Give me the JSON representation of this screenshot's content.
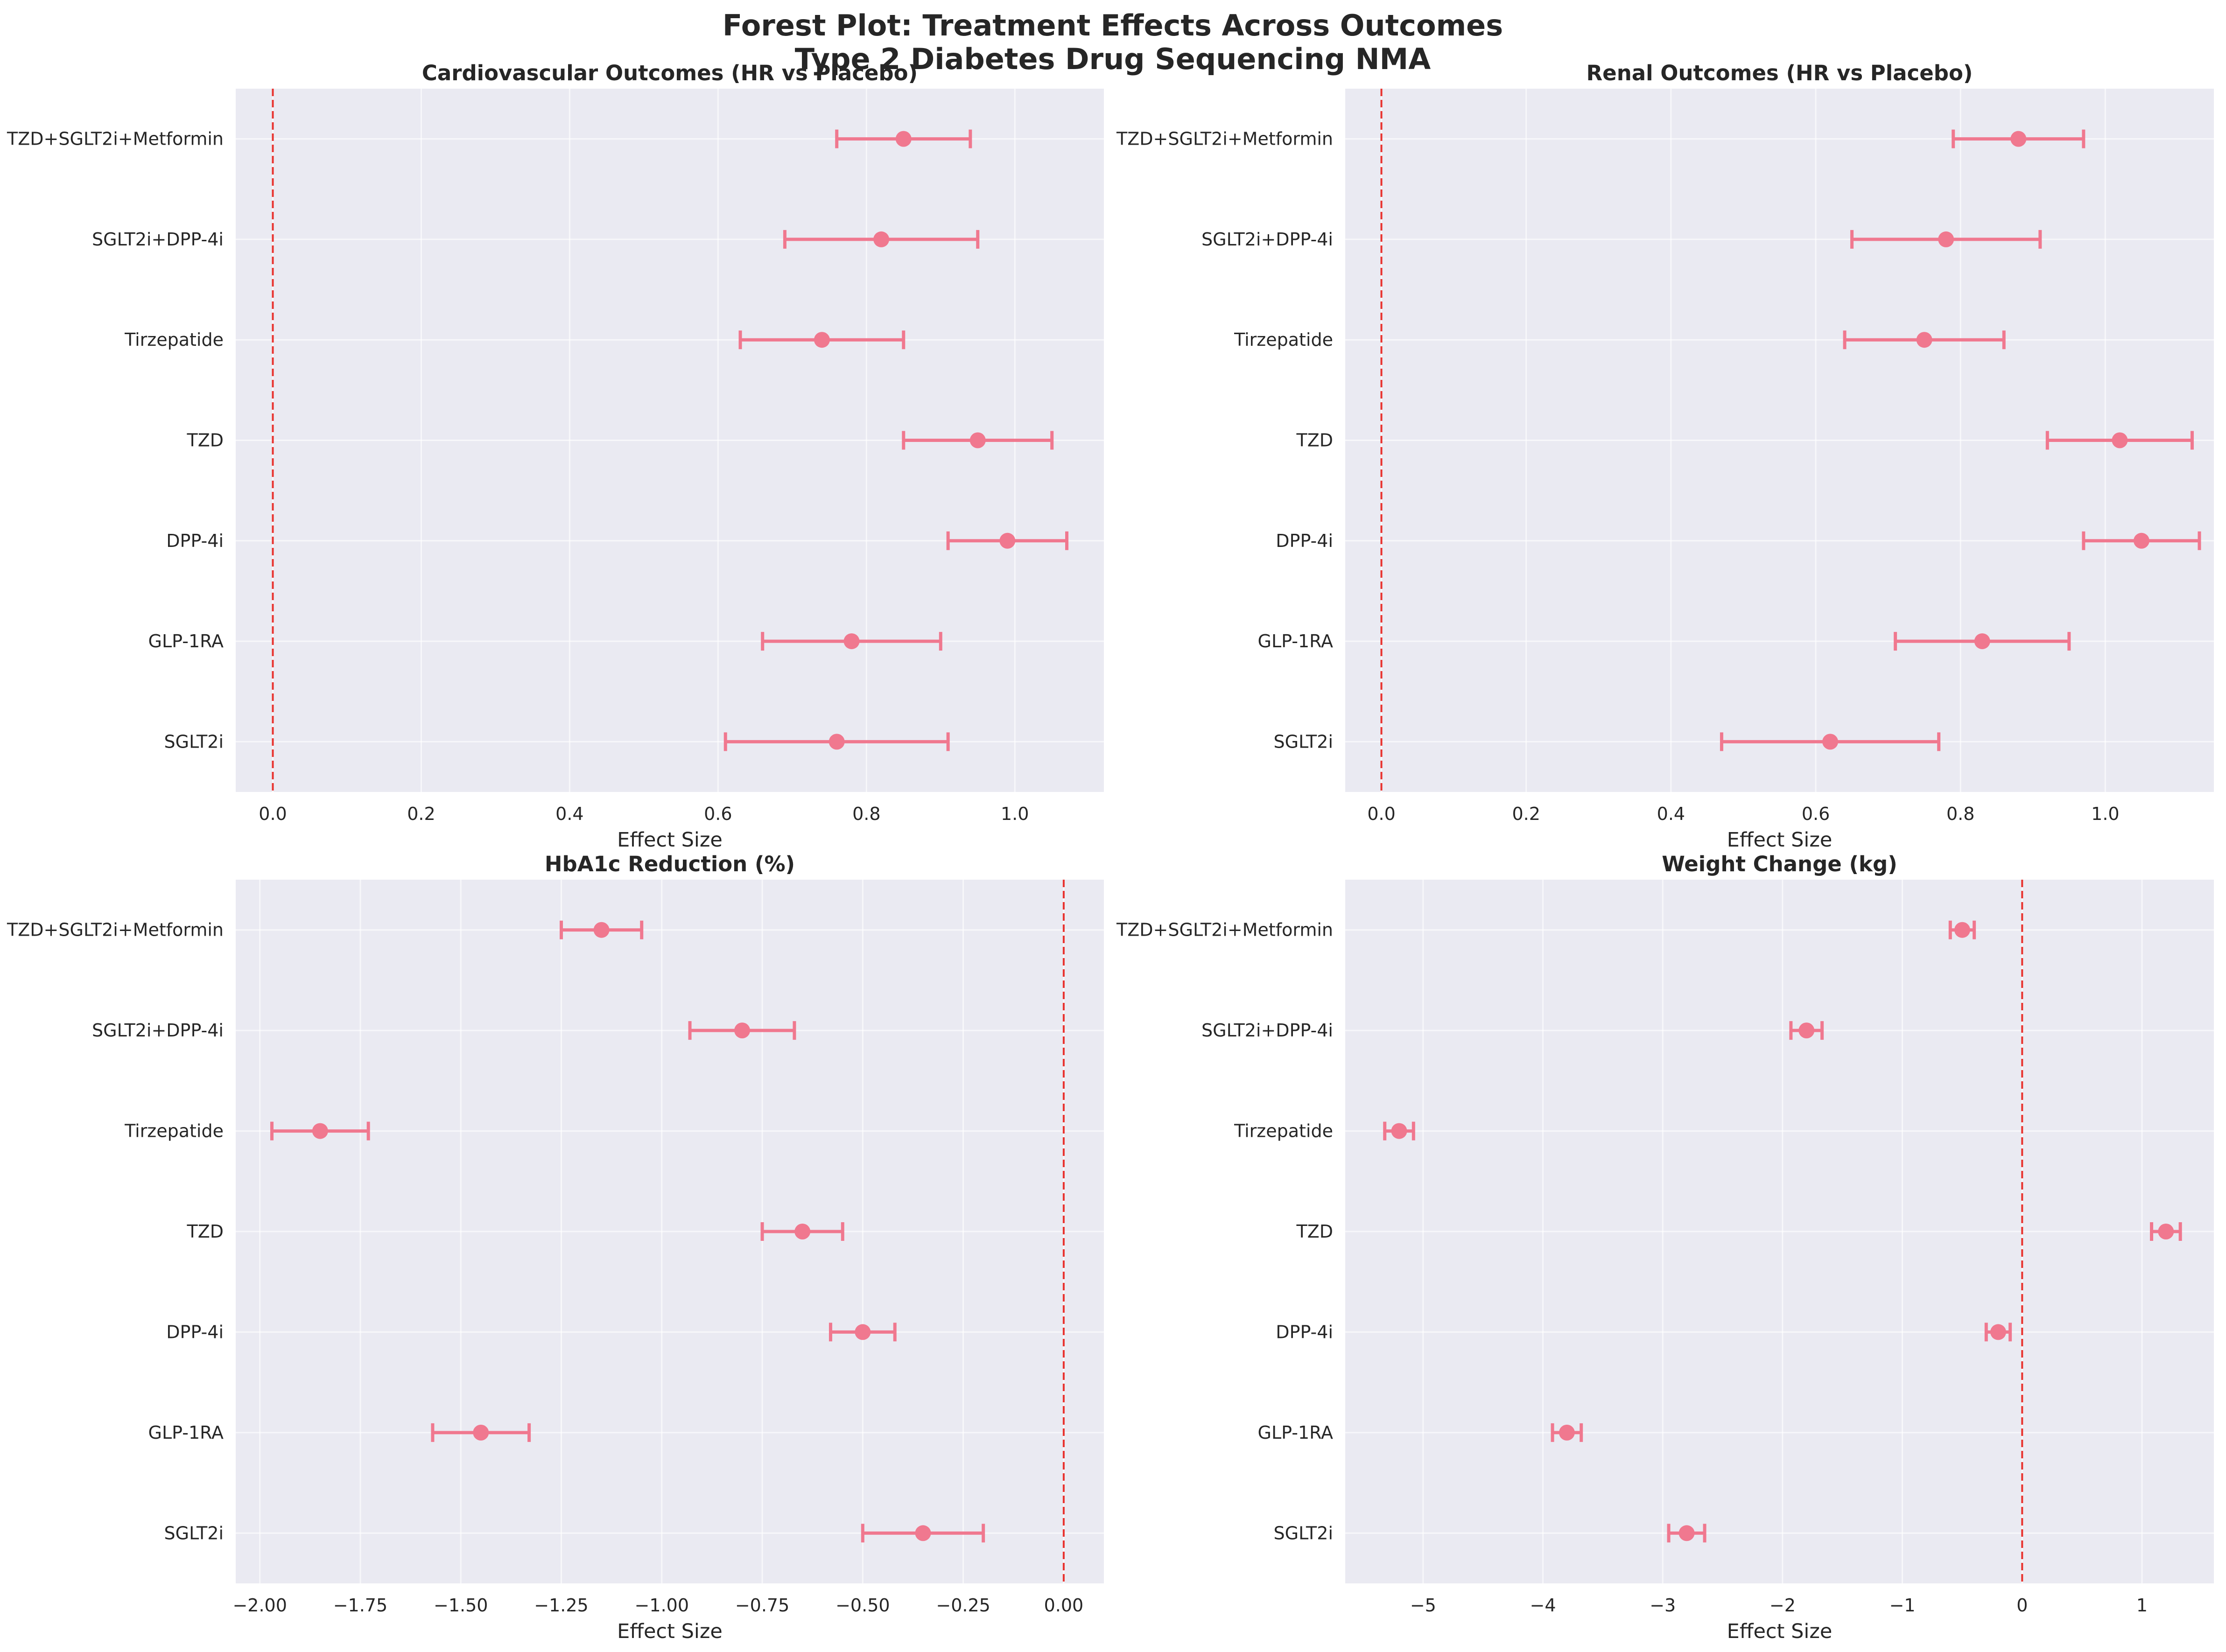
{
  "figure": {
    "title_line1": "Forest Plot: Treatment Effects Across Outcomes",
    "title_line2": "Type 2 Diabetes Drug Sequencing NMA"
  },
  "colors": {
    "marker": "#f0788f",
    "reference_line": "#e8332f",
    "panel_bg": "#eaeaf2",
    "grid": "#ffffff"
  },
  "chart_data": [
    {
      "type": "scatter",
      "style": "forest-plot",
      "title": "Cardiovascular Outcomes (HR vs Placebo)",
      "xlabel": "Effect Size",
      "xlim": [
        -0.05,
        1.12
      ],
      "xticks": [
        0.0,
        0.2,
        0.4,
        0.6,
        0.8,
        1.0
      ],
      "xtick_labels": [
        "0.0",
        "0.2",
        "0.4",
        "0.6",
        "0.8",
        "1.0"
      ],
      "reference_x": 0,
      "grid": true,
      "categories": [
        "SGLT2i",
        "GLP-1RA",
        "DPP-4i",
        "TZD",
        "Tirzepatide",
        "SGLT2i+DPP-4i",
        "TZD+SGLT2i+Metformin"
      ],
      "estimates": [
        0.76,
        0.78,
        0.99,
        0.95,
        0.74,
        0.82,
        0.85
      ],
      "ci_lower": [
        0.61,
        0.66,
        0.91,
        0.85,
        0.63,
        0.69,
        0.76
      ],
      "ci_upper": [
        0.91,
        0.9,
        1.07,
        1.05,
        0.85,
        0.95,
        0.94
      ]
    },
    {
      "type": "scatter",
      "style": "forest-plot",
      "title": "Renal Outcomes (HR vs Placebo)",
      "xlabel": "Effect Size",
      "xlim": [
        -0.05,
        1.15
      ],
      "xticks": [
        0.0,
        0.2,
        0.4,
        0.6,
        0.8,
        1.0
      ],
      "xtick_labels": [
        "0.0",
        "0.2",
        "0.4",
        "0.6",
        "0.8",
        "1.0"
      ],
      "reference_x": 0,
      "grid": true,
      "categories": [
        "SGLT2i",
        "GLP-1RA",
        "DPP-4i",
        "TZD",
        "Tirzepatide",
        "SGLT2i+DPP-4i",
        "TZD+SGLT2i+Metformin"
      ],
      "estimates": [
        0.62,
        0.83,
        1.05,
        1.02,
        0.75,
        0.78,
        0.88
      ],
      "ci_lower": [
        0.47,
        0.71,
        0.97,
        0.92,
        0.64,
        0.65,
        0.79
      ],
      "ci_upper": [
        0.77,
        0.95,
        1.13,
        1.12,
        0.86,
        0.91,
        0.97
      ]
    },
    {
      "type": "scatter",
      "style": "forest-plot",
      "title": "HbA1c Reduction (%)",
      "xlabel": "Effect Size",
      "xlim": [
        -2.06,
        0.1
      ],
      "xticks": [
        -2.0,
        -1.75,
        -1.5,
        -1.25,
        -1.0,
        -0.75,
        -0.5,
        -0.25,
        0.0
      ],
      "xtick_labels": [
        "−2.00",
        "−1.75",
        "−1.50",
        "−1.25",
        "−1.00",
        "−0.75",
        "−0.50",
        "−0.25",
        "0.00"
      ],
      "reference_x": 0,
      "grid": true,
      "categories": [
        "SGLT2i",
        "GLP-1RA",
        "DPP-4i",
        "TZD",
        "Tirzepatide",
        "SGLT2i+DPP-4i",
        "TZD+SGLT2i+Metformin"
      ],
      "estimates": [
        -0.35,
        -1.45,
        -0.5,
        -0.65,
        -1.85,
        -0.8,
        -1.15
      ],
      "ci_lower": [
        -0.5,
        -1.57,
        -0.58,
        -0.75,
        -1.97,
        -0.93,
        -1.25
      ],
      "ci_upper": [
        -0.2,
        -1.33,
        -0.42,
        -0.55,
        -1.73,
        -0.67,
        -1.05
      ]
    },
    {
      "type": "scatter",
      "style": "forest-plot",
      "title": "Weight Change (kg)",
      "xlabel": "Effect Size",
      "xlim": [
        -5.65,
        1.6
      ],
      "xticks": [
        -5,
        -4,
        -3,
        -2,
        -1,
        0,
        1
      ],
      "xtick_labels": [
        "−5",
        "−4",
        "−3",
        "−2",
        "−1",
        "0",
        "1"
      ],
      "reference_x": 0,
      "grid": true,
      "categories": [
        "SGLT2i",
        "GLP-1RA",
        "DPP-4i",
        "TZD",
        "Tirzepatide",
        "SGLT2i+DPP-4i",
        "TZD+SGLT2i+Metformin"
      ],
      "estimates": [
        -2.8,
        -3.8,
        -0.2,
        1.2,
        -5.2,
        -1.8,
        -0.5
      ],
      "ci_lower": [
        -2.95,
        -3.92,
        -0.3,
        1.08,
        -5.32,
        -1.93,
        -0.6
      ],
      "ci_upper": [
        -2.65,
        -3.68,
        -0.1,
        1.32,
        -5.08,
        -1.67,
        -0.4
      ]
    }
  ]
}
